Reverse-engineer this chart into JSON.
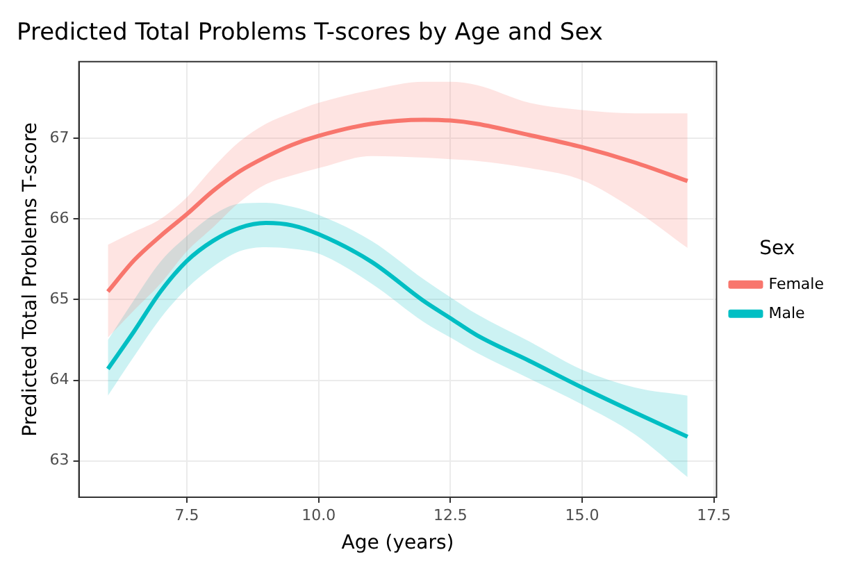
{
  "chart_data": {
    "type": "line",
    "title": "Predicted Total Problems T-scores by Age and Sex",
    "xlabel": "Age (years)",
    "ylabel": "Predicted Total Problems T-score",
    "legend_title": "Sex",
    "legend": "right",
    "grid": true,
    "marker": "none",
    "line_style": "solid",
    "x": [
      6,
      6.5,
      7,
      7.5,
      8,
      8.5,
      9,
      9.5,
      10,
      11,
      12,
      12.5,
      13,
      14,
      15,
      16,
      17
    ],
    "xlim": [
      5.45,
      17.55
    ],
    "xticks": [
      7.5,
      {
        "value": 10,
        "label": "10.0"
      },
      12.5,
      {
        "value": 15,
        "label": "15.0"
      },
      17.5
    ],
    "ylim": [
      62.55,
      67.95
    ],
    "yticks": [
      63,
      64,
      65,
      66,
      67
    ],
    "series": [
      {
        "name": "Female",
        "color": "#f8766d",
        "values": [
          65.1,
          65.49,
          65.79,
          66.06,
          66.35,
          66.59,
          66.77,
          66.92,
          67.03,
          67.18,
          67.23,
          67.22,
          67.18,
          67.04,
          66.89,
          66.7,
          66.47
        ],
        "upper": [
          65.68,
          65.84,
          66.0,
          66.27,
          66.64,
          66.96,
          67.18,
          67.32,
          67.44,
          67.6,
          67.7,
          67.7,
          67.66,
          67.44,
          67.35,
          67.31,
          67.31
        ],
        "lower": [
          64.53,
          64.87,
          65.2,
          65.6,
          65.9,
          66.21,
          66.43,
          66.54,
          66.63,
          66.78,
          66.76,
          66.74,
          66.72,
          66.63,
          66.48,
          66.11,
          65.64
        ]
      },
      {
        "name": "Male",
        "color": "#00bfc4",
        "values": [
          64.14,
          64.61,
          65.1,
          65.48,
          65.73,
          65.89,
          65.95,
          65.92,
          65.81,
          65.47,
          64.98,
          64.77,
          64.56,
          64.24,
          63.91,
          63.6,
          63.3
        ],
        "upper": [
          64.5,
          65.0,
          65.47,
          65.79,
          66.05,
          66.19,
          66.2,
          66.15,
          66.05,
          65.73,
          65.25,
          65.03,
          64.82,
          64.48,
          64.13,
          63.91,
          63.81
        ],
        "lower": [
          63.81,
          64.3,
          64.77,
          65.14,
          65.41,
          65.6,
          65.65,
          65.63,
          65.57,
          65.2,
          64.72,
          64.53,
          64.34,
          64.02,
          63.7,
          63.33,
          62.8
        ]
      }
    ]
  }
}
